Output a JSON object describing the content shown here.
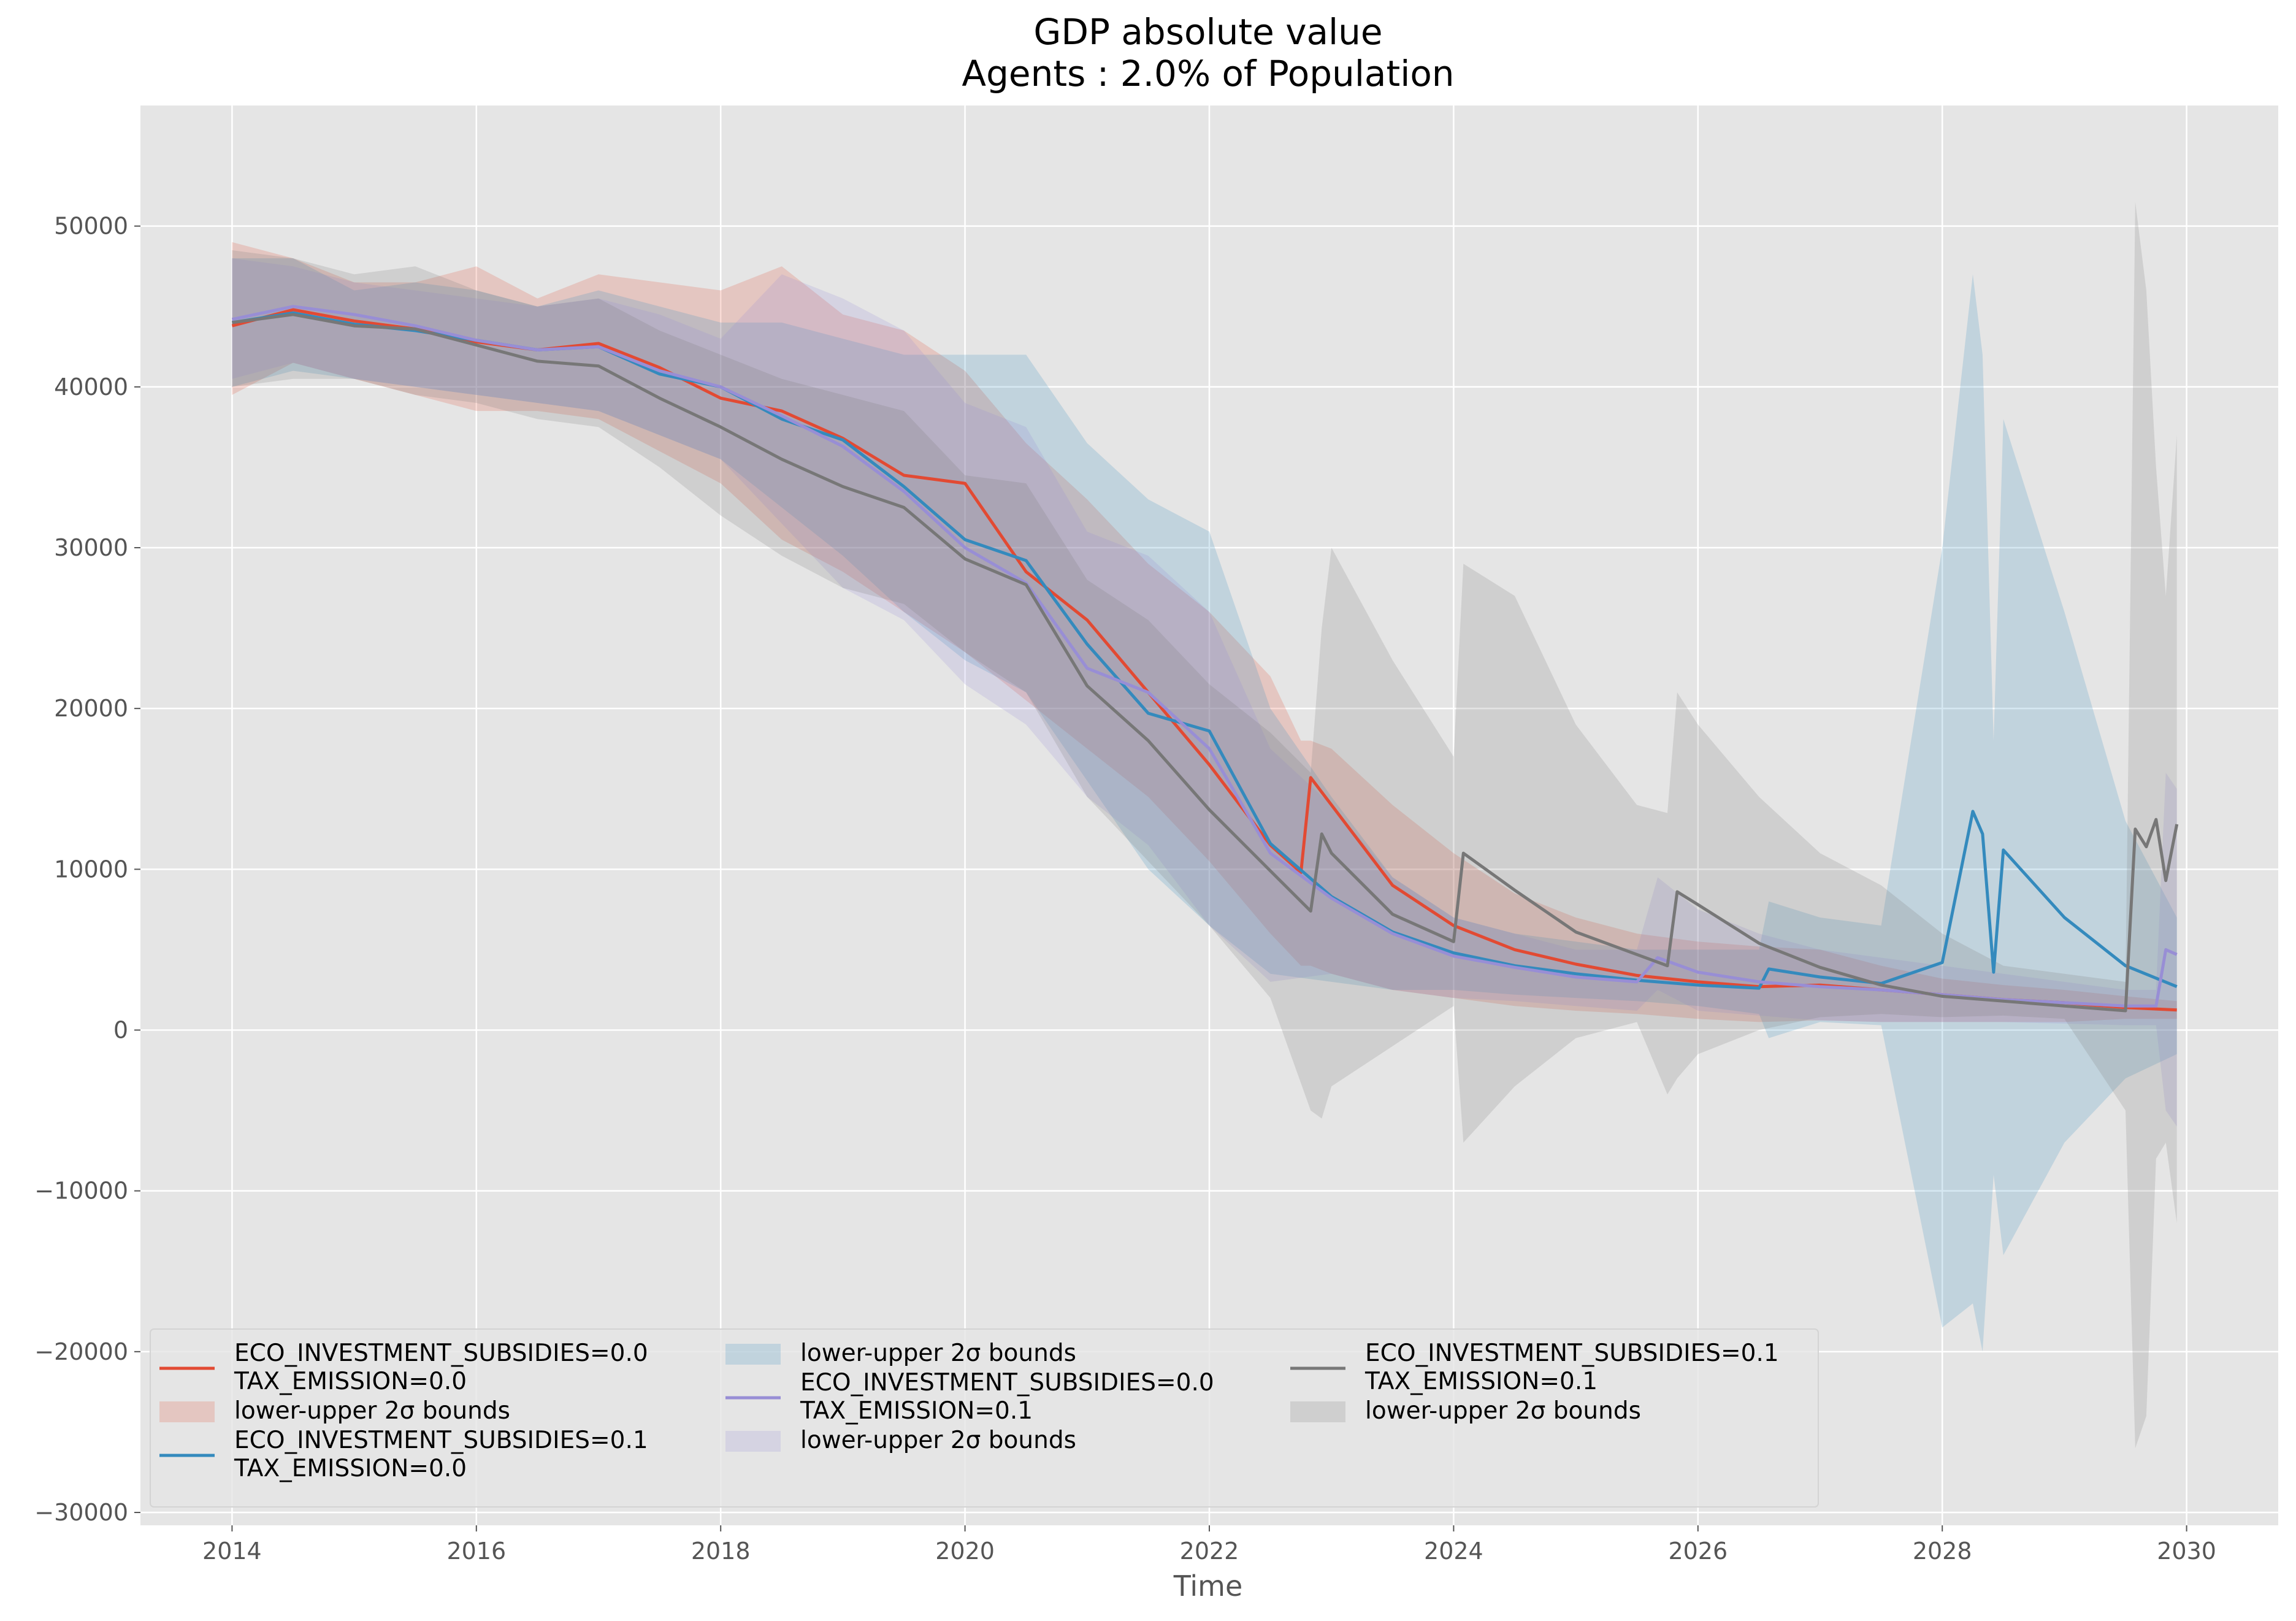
{
  "chart_data": {
    "type": "line",
    "title": "GDP absolute value",
    "subtitle": "Agents : 2.0% of Population",
    "xlabel": "Time",
    "ylabel": "",
    "xlim": [
      2013.25,
      2030.75
    ],
    "ylim": [
      -30800,
      57500
    ],
    "x_ticks": [
      2014,
      2016,
      2018,
      2020,
      2022,
      2024,
      2026,
      2028,
      2030
    ],
    "x_tick_labels": [
      "2014",
      "2016",
      "2018",
      "2020",
      "2022",
      "2024",
      "2026",
      "2028",
      "2030"
    ],
    "y_ticks": [
      -30000,
      -20000,
      -10000,
      0,
      10000,
      20000,
      30000,
      40000,
      50000
    ],
    "y_tick_labels": [
      "−30000",
      "−20000",
      "−10000",
      "0",
      "10000",
      "20000",
      "30000",
      "40000",
      "50000"
    ],
    "grid": true,
    "legend_position": "lower-left",
    "legend": {
      "columns": [
        [
          {
            "kind": "line",
            "series": 0,
            "lines": [
              "ECO_INVESTMENT_SUBSIDIES=0.0",
              "TAX_EMISSION=0.0"
            ]
          },
          {
            "kind": "band",
            "series": 0,
            "lines": [
              "lower-upper 2σ bounds"
            ]
          },
          {
            "kind": "line",
            "series": 1,
            "lines": [
              "ECO_INVESTMENT_SUBSIDIES=0.1",
              "TAX_EMISSION=0.0"
            ]
          }
        ],
        [
          {
            "kind": "band",
            "series": 1,
            "lines": [
              "lower-upper 2σ bounds"
            ]
          },
          {
            "kind": "line",
            "series": 2,
            "lines": [
              "ECO_INVESTMENT_SUBSIDIES=0.0",
              "TAX_EMISSION=0.1"
            ]
          },
          {
            "kind": "band",
            "series": 2,
            "lines": [
              "lower-upper 2σ bounds"
            ]
          }
        ],
        [
          {
            "kind": "line",
            "series": 3,
            "lines": [
              "ECO_INVESTMENT_SUBSIDIES=0.1",
              "TAX_EMISSION=0.1"
            ]
          },
          {
            "kind": "band",
            "series": 3,
            "lines": [
              "lower-upper 2σ bounds"
            ]
          }
        ]
      ]
    },
    "series": [
      {
        "name": "ECO_INVESTMENT_SUBSIDIES=0.0 TAX_EMISSION=0.0",
        "color": "#E24A33",
        "x": [
          2014.0,
          2014.5,
          2015.0,
          2015.5,
          2016.0,
          2016.5,
          2017.0,
          2017.5,
          2018.0,
          2018.5,
          2019.0,
          2019.5,
          2020.0,
          2020.5,
          2021.0,
          2021.5,
          2022.0,
          2022.5,
          2022.75,
          2022.83,
          2023.0,
          2023.5,
          2024.0,
          2024.5,
          2025.0,
          2025.5,
          2026.0,
          2026.5,
          2027.0,
          2027.5,
          2028.0,
          2028.5,
          2029.0,
          2029.5,
          2029.92
        ],
        "y": [
          43800,
          44800,
          44100,
          43600,
          42800,
          42300,
          42700,
          41200,
          39300,
          38500,
          36800,
          34500,
          34000,
          28500,
          25500,
          21000,
          16500,
          11500,
          9800,
          15700,
          14000,
          9000,
          6500,
          5000,
          4100,
          3400,
          3000,
          2700,
          2800,
          2500,
          2200,
          1900,
          1700,
          1400,
          1250
        ],
        "lower": [
          39500,
          41500,
          40500,
          39500,
          38500,
          38500,
          38000,
          36000,
          34000,
          30500,
          28500,
          26000,
          23500,
          20500,
          17500,
          14500,
          10500,
          6000,
          4000,
          4000,
          3500,
          2500,
          2000,
          1500,
          1200,
          1000,
          700,
          500,
          600,
          500,
          500,
          500,
          500,
          700,
          700
        ],
        "upper": [
          49000,
          48000,
          46500,
          46500,
          47500,
          45500,
          47000,
          46500,
          46000,
          47500,
          44500,
          43500,
          41000,
          36500,
          33000,
          29000,
          26000,
          22000,
          18000,
          18000,
          17500,
          14000,
          11000,
          8500,
          7000,
          6000,
          5500,
          5200,
          5000,
          4000,
          3200,
          2800,
          2500,
          2100,
          1800
        ]
      },
      {
        "name": "ECO_INVESTMENT_SUBSIDIES=0.1 TAX_EMISSION=0.0",
        "color": "#348ABD",
        "x": [
          2014.0,
          2014.5,
          2015.0,
          2015.5,
          2016.0,
          2016.5,
          2017.0,
          2017.5,
          2018.0,
          2018.5,
          2019.0,
          2019.5,
          2020.0,
          2020.5,
          2021.0,
          2021.5,
          2022.0,
          2022.5,
          2023.0,
          2023.5,
          2024.0,
          2024.5,
          2025.0,
          2025.5,
          2026.0,
          2026.5,
          2026.58,
          2027.0,
          2027.5,
          2028.0,
          2028.25,
          2028.33,
          2028.42,
          2028.5,
          2029.0,
          2029.5,
          2029.92
        ],
        "y": [
          44000,
          44600,
          43900,
          43500,
          42900,
          42300,
          42500,
          40800,
          40000,
          38000,
          36700,
          33800,
          30500,
          29200,
          24000,
          19700,
          18600,
          11600,
          8300,
          6100,
          4800,
          4000,
          3500,
          3100,
          2800,
          2600,
          3800,
          3300,
          2900,
          4200,
          13600,
          12200,
          3600,
          11200,
          7000,
          4000,
          2700
        ],
        "lower": [
          40000,
          41000,
          40500,
          40000,
          39500,
          39000,
          38500,
          37000,
          35500,
          32500,
          29500,
          26000,
          23000,
          21000,
          15500,
          10000,
          6500,
          3500,
          3000,
          2500,
          2500,
          2200,
          2000,
          1800,
          1500,
          1000,
          -500,
          500,
          300,
          -18500,
          -17000,
          -20000,
          -9000,
          -14000,
          -7000,
          -3000,
          -1500
        ],
        "upper": [
          48000,
          48000,
          46000,
          46500,
          46000,
          45000,
          46000,
          45000,
          44000,
          44000,
          43000,
          42000,
          42000,
          42000,
          36500,
          33000,
          31000,
          20000,
          14500,
          9500,
          7000,
          6000,
          5500,
          5000,
          5000,
          5000,
          8000,
          7000,
          6500,
          30000,
          47000,
          42000,
          18000,
          38000,
          26000,
          13000,
          7000
        ]
      },
      {
        "name": "ECO_INVESTMENT_SUBSIDIES=0.0 TAX_EMISSION=0.1",
        "color": "#988ED5",
        "x": [
          2014.0,
          2014.5,
          2015.0,
          2015.5,
          2016.0,
          2016.5,
          2017.0,
          2017.5,
          2018.0,
          2018.5,
          2019.0,
          2019.5,
          2020.0,
          2020.5,
          2021.0,
          2021.5,
          2022.0,
          2022.5,
          2023.0,
          2023.5,
          2024.0,
          2024.5,
          2025.0,
          2025.5,
          2025.67,
          2026.0,
          2026.5,
          2027.0,
          2027.5,
          2028.0,
          2028.5,
          2029.0,
          2029.5,
          2029.75,
          2029.83,
          2029.92
        ],
        "y": [
          44200,
          45000,
          44500,
          43800,
          42900,
          42300,
          42500,
          41000,
          40000,
          38200,
          36300,
          33500,
          30000,
          27800,
          22500,
          21000,
          17500,
          11000,
          8200,
          6000,
          4600,
          3900,
          3300,
          3000,
          4500,
          3600,
          3000,
          2700,
          2500,
          2200,
          1900,
          1700,
          1500,
          1500,
          5000,
          4700
        ],
        "lower": [
          40500,
          41500,
          40500,
          40000,
          39500,
          39000,
          38500,
          37000,
          35500,
          31500,
          27500,
          25500,
          21500,
          19000,
          14500,
          11500,
          6500,
          3000,
          3500,
          2500,
          2000,
          1800,
          1500,
          1200,
          2500,
          1200,
          900,
          600,
          500,
          500,
          500,
          400,
          300,
          300,
          -5000,
          -6000
        ],
        "upper": [
          48000,
          47500,
          46500,
          46000,
          45500,
          45000,
          45500,
          44500,
          43000,
          47000,
          45500,
          43500,
          39000,
          37500,
          31000,
          29500,
          26000,
          17500,
          14000,
          9500,
          7000,
          6000,
          5000,
          5000,
          9500,
          7500,
          6000,
          5000,
          4500,
          4000,
          3500,
          3000,
          2500,
          2500,
          16000,
          15000
        ]
      },
      {
        "name": "ECO_INVESTMENT_SUBSIDIES=0.1 TAX_EMISSION=0.1",
        "color": "#777777",
        "x": [
          2014.0,
          2014.5,
          2015.0,
          2015.5,
          2016.0,
          2016.5,
          2017.0,
          2017.5,
          2018.0,
          2018.5,
          2019.0,
          2019.5,
          2020.0,
          2020.5,
          2021.0,
          2021.5,
          2022.0,
          2022.5,
          2022.83,
          2022.92,
          2023.0,
          2023.5,
          2024.0,
          2024.08,
          2024.5,
          2025.0,
          2025.5,
          2025.75,
          2025.83,
          2026.0,
          2026.5,
          2027.0,
          2027.5,
          2028.0,
          2028.5,
          2029.0,
          2029.5,
          2029.58,
          2029.67,
          2029.75,
          2029.83,
          2029.92
        ],
        "y": [
          44000,
          44500,
          43800,
          43600,
          42600,
          41600,
          41300,
          39300,
          37500,
          35500,
          33800,
          32500,
          29300,
          27700,
          21400,
          18000,
          13700,
          9900,
          7400,
          12200,
          11000,
          7200,
          5500,
          11000,
          8700,
          6100,
          4700,
          4000,
          8600,
          7800,
          5400,
          3900,
          2800,
          2100,
          1800,
          1500,
          1200,
          12500,
          11400,
          13100,
          9300,
          12800
        ],
        "lower": [
          40000,
          40500,
          40500,
          39500,
          39000,
          38000,
          37500,
          35000,
          32000,
          29500,
          27500,
          26500,
          23500,
          21000,
          14500,
          10500,
          6500,
          2000,
          -5000,
          -5500,
          -3500,
          -1000,
          1500,
          -7000,
          -3500,
          -500,
          500,
          -4000,
          -3000,
          -1500,
          0,
          800,
          1000,
          800,
          900,
          700,
          -5000,
          -26000,
          -24000,
          -8000,
          -7000,
          -12000
        ],
        "upper": [
          48500,
          48000,
          47000,
          47500,
          46000,
          45000,
          45500,
          43500,
          42000,
          40500,
          39500,
          38500,
          34500,
          34000,
          28000,
          25500,
          21500,
          18500,
          16000,
          25000,
          30000,
          23000,
          17000,
          29000,
          27000,
          19000,
          14000,
          13500,
          21000,
          19000,
          14500,
          11000,
          9000,
          6000,
          4000,
          3500,
          3000,
          51500,
          46000,
          35000,
          27000,
          37000
        ]
      }
    ]
  }
}
